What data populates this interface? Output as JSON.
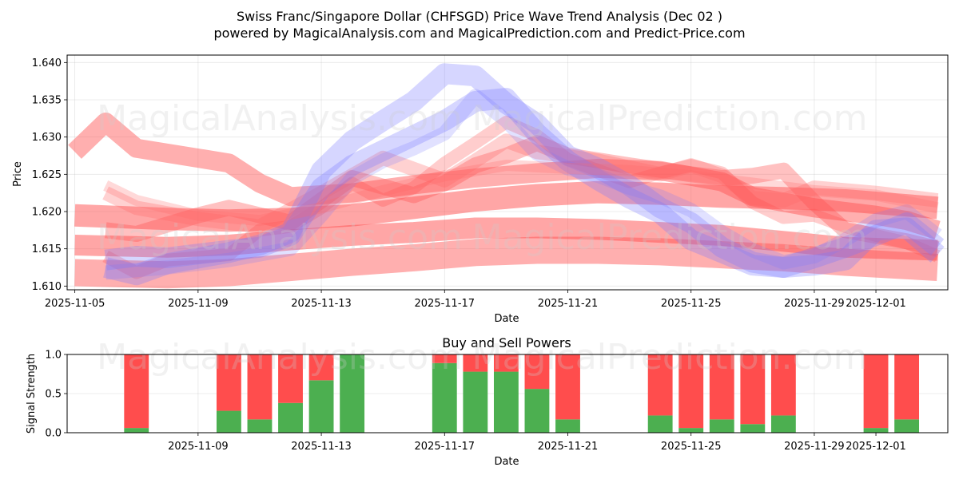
{
  "title_line1": "Swiss Franc/Singapore Dollar (CHFSGD) Price Wave Trend Analysis (Dec 02 )",
  "title_line2": "powered by MagicalAnalysis.com and MagicalPrediction.com and Predict-Price.com",
  "watermarks": [
    "MagicalAnalysis.com",
    "MagicalPrediction.com"
  ],
  "chart_data": [
    {
      "type": "area",
      "name": "price-wave",
      "xlabel": "Date",
      "ylabel": "Price",
      "xlim": [
        "2025-11-04T18:00",
        "2025-12-03T08:00"
      ],
      "ylim": [
        1.6095,
        1.641
      ],
      "yticks": [
        "1.610",
        "1.615",
        "1.620",
        "1.625",
        "1.630",
        "1.635",
        "1.640"
      ],
      "xticks": [
        "2025-11-05",
        "2025-11-09",
        "2025-11-13",
        "2025-11-17",
        "2025-11-21",
        "2025-11-25",
        "2025-11-29",
        "2025-12-01"
      ],
      "grid": true,
      "bands": [
        {
          "color": "#ff4d4d",
          "opacity": 0.45,
          "width": 24,
          "points": [
            [
              0,
              1.628
            ],
            [
              1,
              1.632
            ],
            [
              2,
              1.6285
            ],
            [
              5,
              1.6265
            ],
            [
              6,
              1.6238
            ],
            [
              7,
              1.622
            ],
            [
              9,
              1.6225
            ],
            [
              11,
              1.6236
            ],
            [
              13,
              1.6245
            ],
            [
              15,
              1.6252
            ],
            [
              17,
              1.6258
            ],
            [
              19,
              1.6255
            ],
            [
              21,
              1.624
            ],
            [
              22,
              1.622
            ],
            [
              24,
              1.6205
            ],
            [
              26,
              1.6195
            ],
            [
              27,
              1.6188
            ],
            [
              28,
              1.6175
            ]
          ]
        },
        {
          "color": "#ff4d4d",
          "opacity": 0.5,
          "width": 28,
          "points": [
            [
              0,
              1.6195
            ],
            [
              3,
              1.619
            ],
            [
              5,
              1.6188
            ],
            [
              7,
              1.619
            ],
            [
              9,
              1.6195
            ],
            [
              11,
              1.6205
            ],
            [
              13,
              1.6215
            ],
            [
              15,
              1.6222
            ],
            [
              17,
              1.6226
            ],
            [
              19,
              1.6224
            ],
            [
              21,
              1.622
            ],
            [
              23,
              1.6218
            ],
            [
              25,
              1.6215
            ],
            [
              28,
              1.6205
            ]
          ]
        },
        {
          "color": "#ff4d4d",
          "opacity": 0.5,
          "width": 26,
          "points": [
            [
              0,
              1.6155
            ],
            [
              3,
              1.6152
            ],
            [
              5,
              1.6155
            ],
            [
              7,
              1.6162
            ],
            [
              9,
              1.6168
            ],
            [
              11,
              1.6172
            ],
            [
              13,
              1.6178
            ],
            [
              15,
              1.6178
            ],
            [
              17,
              1.6176
            ],
            [
              19,
              1.6172
            ],
            [
              21,
              1.6168
            ],
            [
              23,
              1.616
            ],
            [
              25,
              1.6152
            ],
            [
              28,
              1.6148
            ]
          ]
        },
        {
          "color": "#ff4d4d",
          "opacity": 0.45,
          "width": 34,
          "points": [
            [
              0,
              1.6118
            ],
            [
              3,
              1.6115
            ],
            [
              5,
              1.6118
            ],
            [
              7,
              1.6125
            ],
            [
              9,
              1.6132
            ],
            [
              11,
              1.6138
            ],
            [
              13,
              1.6145
            ],
            [
              15,
              1.6148
            ],
            [
              17,
              1.6148
            ],
            [
              19,
              1.6146
            ],
            [
              21,
              1.6142
            ],
            [
              23,
              1.6138
            ],
            [
              25,
              1.6132
            ],
            [
              28,
              1.6125
            ]
          ]
        },
        {
          "color": "#ff4d4d",
          "opacity": 0.35,
          "width": 20,
          "points": [
            [
              1,
              1.6175
            ],
            [
              2,
              1.617
            ],
            [
              4,
              1.6195
            ],
            [
              5,
              1.6205
            ],
            [
              7,
              1.6185
            ],
            [
              8,
              1.6215
            ],
            [
              9,
              1.6245
            ],
            [
              11,
              1.6222
            ],
            [
              12,
              1.6238
            ],
            [
              13,
              1.6262
            ],
            [
              14,
              1.6275
            ],
            [
              15,
              1.6292
            ],
            [
              16,
              1.6275
            ],
            [
              18,
              1.6262
            ],
            [
              20,
              1.625
            ],
            [
              21,
              1.6245
            ],
            [
              22,
              1.6248
            ],
            [
              23,
              1.6255
            ],
            [
              24,
              1.6212
            ],
            [
              25,
              1.6175
            ],
            [
              27,
              1.616
            ],
            [
              28,
              1.615
            ]
          ]
        },
        {
          "color": "#ff6666",
          "opacity": 0.3,
          "width": 18,
          "points": [
            [
              1,
              1.6225
            ],
            [
              2,
              1.6205
            ],
            [
              4,
              1.619
            ],
            [
              6,
              1.618
            ],
            [
              8,
              1.6225
            ],
            [
              10,
              1.6272
            ],
            [
              12,
              1.6242
            ],
            [
              13,
              1.6268
            ],
            [
              14,
              1.6295
            ],
            [
              15,
              1.628
            ],
            [
              17,
              1.6268
            ],
            [
              19,
              1.625
            ],
            [
              20,
              1.6262
            ],
            [
              21,
              1.6248
            ],
            [
              22,
              1.6218
            ],
            [
              23,
              1.6215
            ],
            [
              24,
              1.6232
            ],
            [
              26,
              1.6225
            ],
            [
              28,
              1.6215
            ]
          ]
        },
        {
          "color": "#ff4d4d",
          "opacity": 0.28,
          "width": 16,
          "points": [
            [
              1,
              1.614
            ],
            [
              2,
              1.6118
            ],
            [
              3,
              1.6135
            ],
            [
              5,
              1.6142
            ],
            [
              6,
              1.6175
            ],
            [
              7,
              1.618
            ],
            [
              8,
              1.6205
            ],
            [
              9,
              1.6238
            ],
            [
              10,
              1.6215
            ],
            [
              11,
              1.6232
            ],
            [
              12,
              1.6265
            ],
            [
              13,
              1.6292
            ],
            [
              14,
              1.632
            ],
            [
              15,
              1.6302
            ],
            [
              16,
              1.627
            ],
            [
              17,
              1.6255
            ],
            [
              18,
              1.624
            ],
            [
              19,
              1.6252
            ],
            [
              20,
              1.6262
            ],
            [
              21,
              1.6252
            ],
            [
              22,
              1.6212
            ],
            [
              23,
              1.6192
            ],
            [
              24,
              1.6195
            ],
            [
              25,
              1.618
            ],
            [
              26,
              1.6168
            ],
            [
              27,
              1.6158
            ],
            [
              28,
              1.614
            ]
          ]
        },
        {
          "color": "#7777ff",
          "opacity": 0.3,
          "width": 26,
          "points": [
            [
              1,
              1.6125
            ],
            [
              2,
              1.6115
            ],
            [
              3,
              1.613
            ],
            [
              5,
              1.6145
            ],
            [
              6,
              1.6155
            ],
            [
              7,
              1.6172
            ],
            [
              8,
              1.6255
            ],
            [
              9,
              1.6295
            ],
            [
              10,
              1.6322
            ],
            [
              11,
              1.6348
            ],
            [
              12,
              1.6385
            ],
            [
              13,
              1.6382
            ],
            [
              14,
              1.6345
            ],
            [
              15,
              1.6318
            ],
            [
              16,
              1.6275
            ],
            [
              17,
              1.6258
            ],
            [
              18,
              1.6235
            ],
            [
              19,
              1.6205
            ],
            [
              20,
              1.6185
            ],
            [
              21,
              1.6152
            ],
            [
              22,
              1.6132
            ],
            [
              23,
              1.6125
            ],
            [
              24,
              1.6128
            ],
            [
              25,
              1.6135
            ],
            [
              26,
              1.6175
            ],
            [
              27,
              1.6178
            ],
            [
              28,
              1.6142
            ]
          ]
        },
        {
          "color": "#7777ff",
          "opacity": 0.3,
          "width": 26,
          "points": [
            [
              1,
              1.6135
            ],
            [
              2,
              1.614
            ],
            [
              3,
              1.6138
            ],
            [
              5,
              1.6148
            ],
            [
              6,
              1.6152
            ],
            [
              7,
              1.6168
            ],
            [
              8,
              1.6232
            ],
            [
              9,
              1.6262
            ],
            [
              10,
              1.6282
            ],
            [
              11,
              1.6302
            ],
            [
              12,
              1.6322
            ],
            [
              13,
              1.6348
            ],
            [
              14,
              1.6352
            ],
            [
              15,
              1.6305
            ],
            [
              16,
              1.6268
            ],
            [
              17,
              1.6242
            ],
            [
              18,
              1.6218
            ],
            [
              19,
              1.6198
            ],
            [
              20,
              1.6162
            ],
            [
              21,
              1.6145
            ],
            [
              22,
              1.6128
            ],
            [
              23,
              1.6125
            ],
            [
              24,
              1.6138
            ],
            [
              25,
              1.6152
            ],
            [
              26,
              1.6168
            ],
            [
              27,
              1.6185
            ],
            [
              28,
              1.6152
            ]
          ]
        },
        {
          "color": "#7777ff",
          "opacity": 0.22,
          "width": 18,
          "points": [
            [
              1,
              1.6118
            ],
            [
              3,
              1.6125
            ],
            [
              5,
              1.6135
            ],
            [
              7,
              1.615
            ],
            [
              8,
              1.6195
            ],
            [
              9,
              1.6245
            ],
            [
              10,
              1.6268
            ],
            [
              11,
              1.6285
            ],
            [
              12,
              1.6305
            ],
            [
              13,
              1.6355
            ],
            [
              14,
              1.6322
            ],
            [
              15,
              1.6278
            ],
            [
              16,
              1.6258
            ],
            [
              17,
              1.6248
            ],
            [
              18,
              1.6232
            ],
            [
              19,
              1.622
            ],
            [
              20,
              1.6202
            ],
            [
              21,
              1.6172
            ],
            [
              22,
              1.6148
            ],
            [
              23,
              1.6132
            ],
            [
              24,
              1.614
            ],
            [
              25,
              1.6162
            ],
            [
              26,
              1.6188
            ],
            [
              27,
              1.62
            ],
            [
              28,
              1.6168
            ]
          ]
        },
        {
          "color": "#ff6666",
          "opacity": 0.25,
          "width": 14,
          "points": [
            [
              1,
              1.6235
            ],
            [
              2,
              1.6215
            ],
            [
              4,
              1.6195
            ],
            [
              6,
              1.6188
            ],
            [
              8,
              1.6205
            ],
            [
              10,
              1.6228
            ],
            [
              12,
              1.6248
            ],
            [
              14,
              1.6262
            ],
            [
              16,
              1.6258
            ],
            [
              18,
              1.6255
            ],
            [
              20,
              1.6248
            ],
            [
              22,
              1.6238
            ],
            [
              24,
              1.6228
            ],
            [
              26,
              1.6222
            ],
            [
              28,
              1.6205
            ]
          ]
        }
      ]
    },
    {
      "type": "bar",
      "name": "buy-sell-powers",
      "title": "Buy and Sell Powers",
      "xlabel": "Date",
      "ylabel": "Signal Strength",
      "ylim": [
        0,
        1
      ],
      "yticks": [
        "0.0",
        "0.5",
        "1.0"
      ],
      "xticks": [
        "2025-11-09",
        "2025-11-13",
        "2025-11-17",
        "2025-11-21",
        "2025-11-25",
        "2025-11-29",
        "2025-12-01"
      ],
      "buy_color": "#4caf50",
      "sell_color": "#ff4d4d",
      "bars": [
        {
          "date": "2025-11-07",
          "buy": 0.06
        },
        {
          "date": "2025-11-10",
          "buy": 0.28
        },
        {
          "date": "2025-11-11",
          "buy": 0.17
        },
        {
          "date": "2025-11-12",
          "buy": 0.38
        },
        {
          "date": "2025-11-13",
          "buy": 0.67
        },
        {
          "date": "2025-11-14",
          "buy": 1.0
        },
        {
          "date": "2025-11-17",
          "buy": 0.89
        },
        {
          "date": "2025-11-18",
          "buy": 0.78
        },
        {
          "date": "2025-11-19",
          "buy": 0.78
        },
        {
          "date": "2025-11-20",
          "buy": 0.56
        },
        {
          "date": "2025-11-21",
          "buy": 0.17
        },
        {
          "date": "2025-11-24",
          "buy": 0.22
        },
        {
          "date": "2025-11-25",
          "buy": 0.06
        },
        {
          "date": "2025-11-26",
          "buy": 0.17
        },
        {
          "date": "2025-11-27",
          "buy": 0.11
        },
        {
          "date": "2025-11-28",
          "buy": 0.22
        },
        {
          "date": "2025-12-01",
          "buy": 0.06
        },
        {
          "date": "2025-12-02",
          "buy": 0.17
        }
      ]
    }
  ]
}
